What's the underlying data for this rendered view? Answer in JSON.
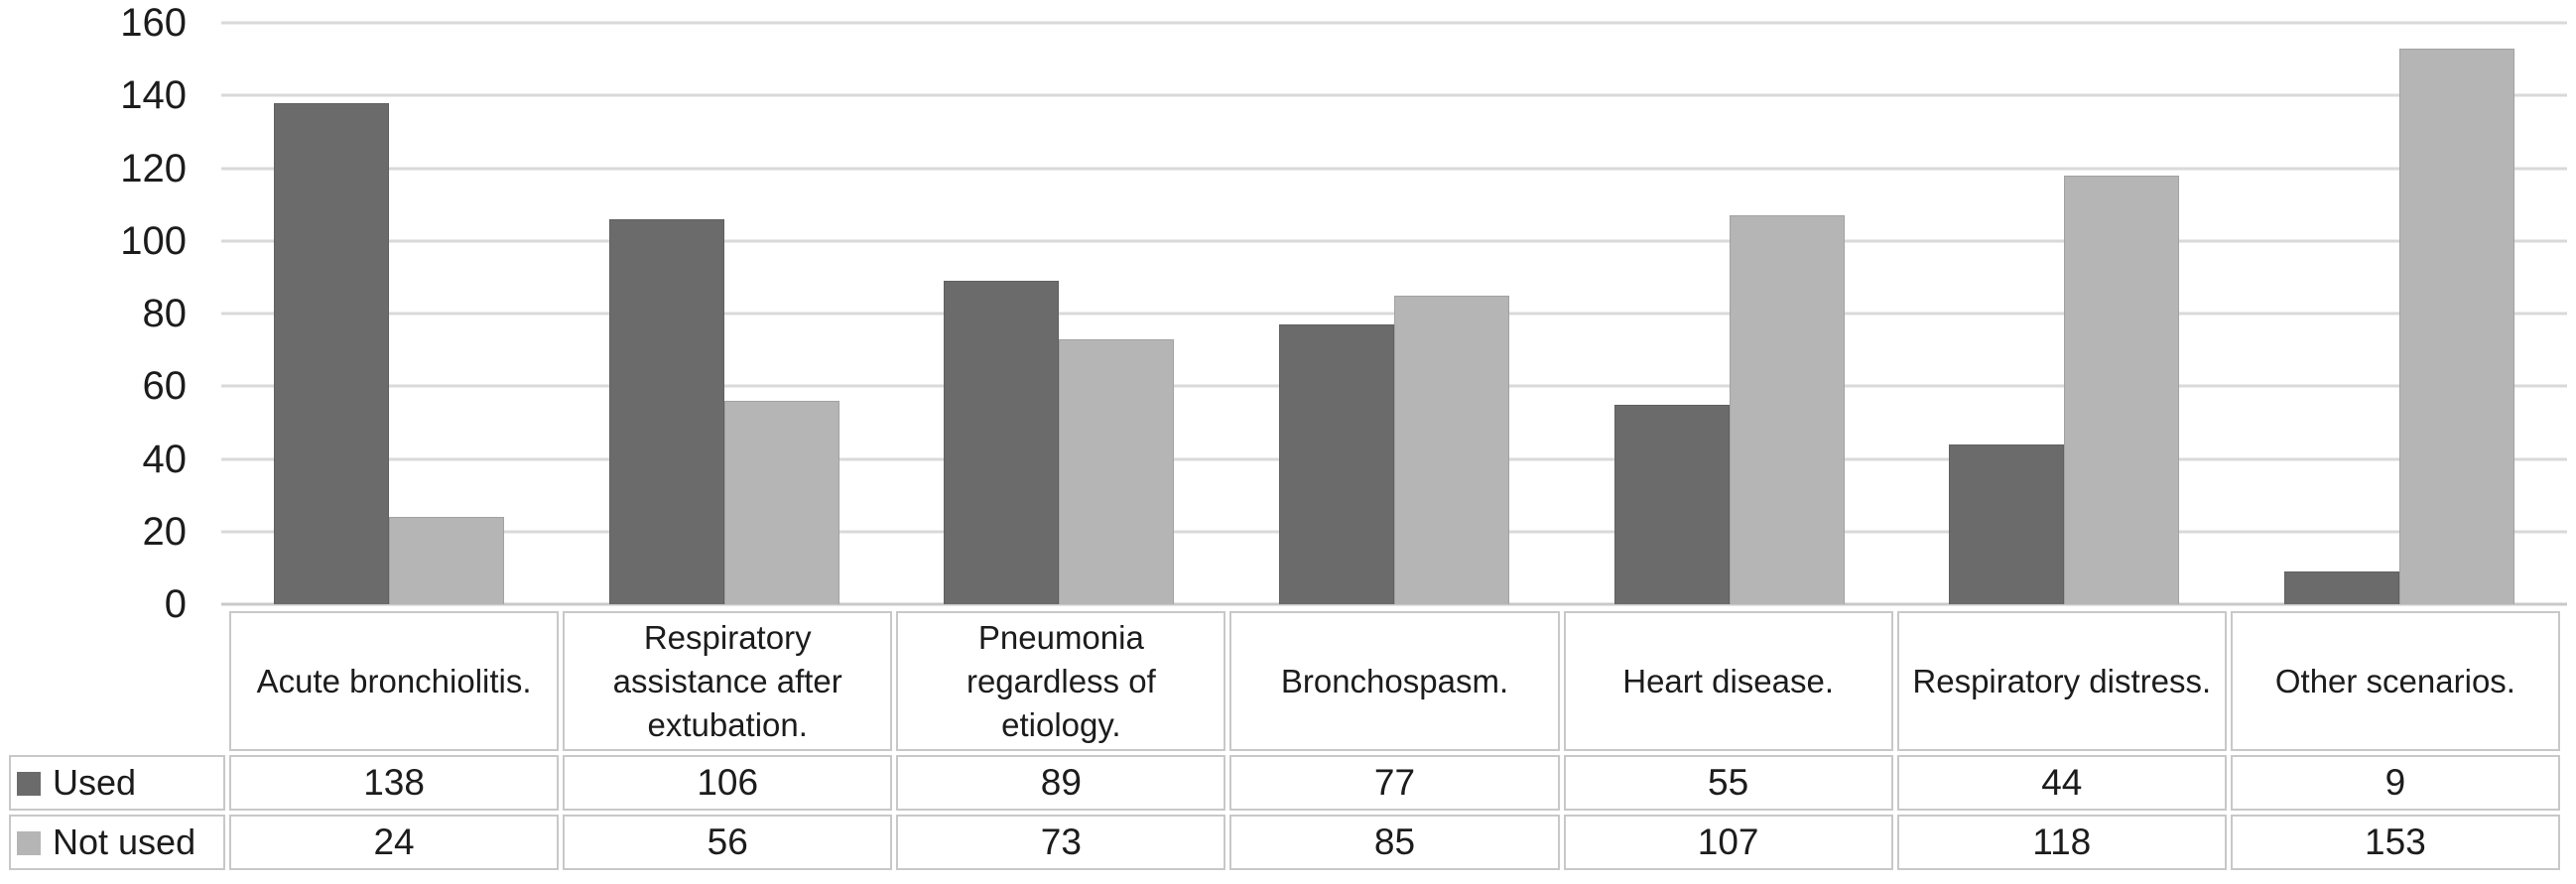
{
  "chart_data": {
    "type": "bar",
    "title": "",
    "xlabel": "",
    "ylabel": "",
    "categories": [
      "Acute bronchiolitis.",
      "Respiratory assistance after extubation.",
      "Pneumonia regardless of etiology.",
      "Bronchospasm.",
      "Heart disease.",
      "Respiratory distress.",
      "Other scenarios."
    ],
    "series": [
      {
        "name": "Used",
        "color": "#6b6b6b",
        "values": [
          138,
          106,
          89,
          77,
          55,
          44,
          9
        ]
      },
      {
        "name": "Not used",
        "color": "#b5b5b5",
        "values": [
          24,
          56,
          73,
          85,
          107,
          118,
          153
        ]
      }
    ],
    "ylim": [
      0,
      160
    ],
    "yticks": [
      0,
      20,
      40,
      60,
      80,
      100,
      120,
      140,
      160
    ],
    "grid": "horizontal",
    "gridline_color": "#d9d9d9",
    "legend_position": "table-left",
    "table_border_color": "#c8c8c8",
    "text_color": "#1c1c1c",
    "background": "#ffffff"
  }
}
